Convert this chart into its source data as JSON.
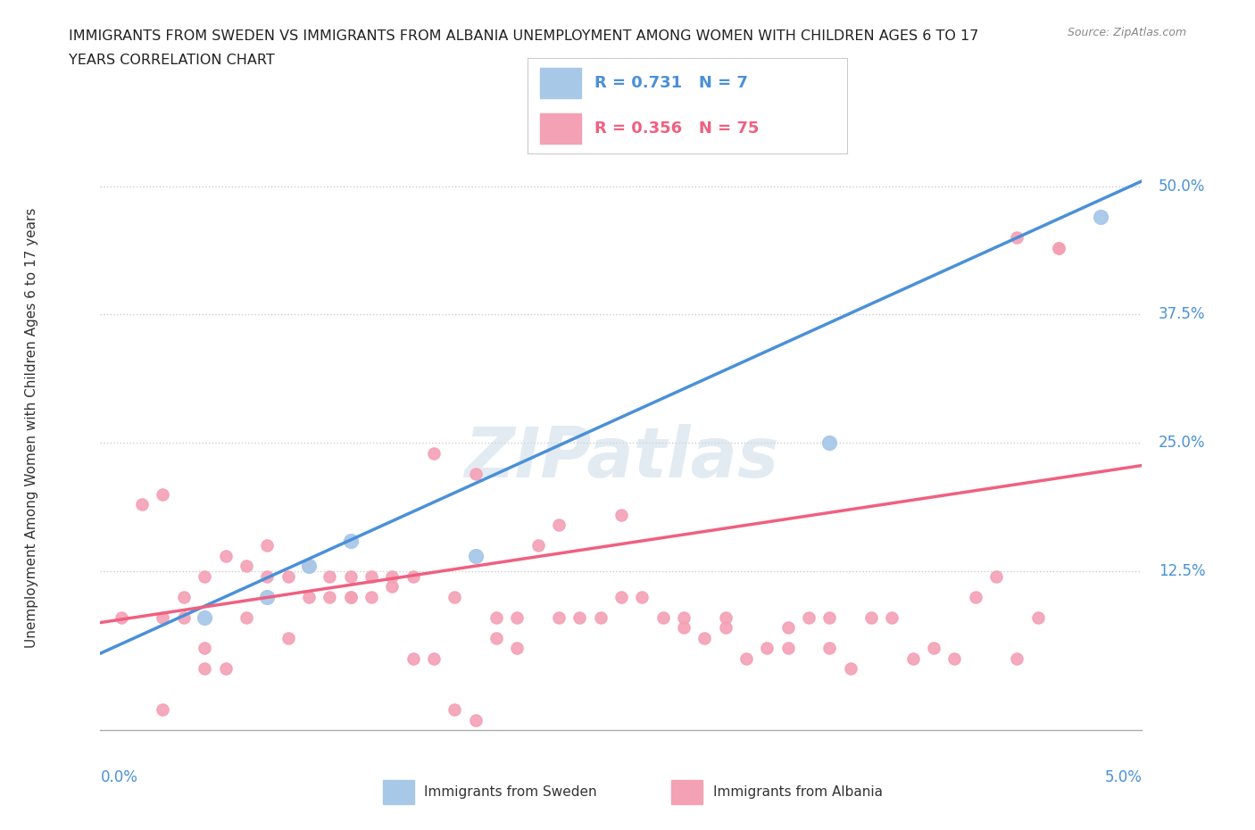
{
  "title_line1": "IMMIGRANTS FROM SWEDEN VS IMMIGRANTS FROM ALBANIA UNEMPLOYMENT AMONG WOMEN WITH CHILDREN AGES 6 TO 17",
  "title_line2": "YEARS CORRELATION CHART",
  "source": "Source: ZipAtlas.com",
  "xlabel_bottom_left": "0.0%",
  "xlabel_bottom_right": "5.0%",
  "ylabel": "Unemployment Among Women with Children Ages 6 to 17 years",
  "y_tick_labels": [
    "12.5%",
    "25.0%",
    "37.5%",
    "50.0%"
  ],
  "y_tick_values": [
    0.125,
    0.25,
    0.375,
    0.5
  ],
  "xlim": [
    0.0,
    0.05
  ],
  "ylim": [
    -0.03,
    0.56
  ],
  "sweden_color": "#a8c8e8",
  "albania_color": "#f4a0b5",
  "sweden_line_color": "#4a90d9",
  "albania_line_color": "#f06080",
  "sweden_R": 0.731,
  "sweden_N": 7,
  "albania_R": 0.356,
  "albania_N": 75,
  "background_color": "#ffffff",
  "watermark": "ZIPatlas",
  "sweden_points_x": [
    0.005,
    0.008,
    0.01,
    0.012,
    0.018,
    0.035,
    0.048
  ],
  "sweden_points_y": [
    0.08,
    0.1,
    0.13,
    0.155,
    0.14,
    0.25,
    0.47
  ],
  "albania_points_x": [
    0.001,
    0.002,
    0.003,
    0.003,
    0.004,
    0.005,
    0.005,
    0.006,
    0.006,
    0.007,
    0.007,
    0.008,
    0.008,
    0.009,
    0.009,
    0.01,
    0.01,
    0.011,
    0.011,
    0.012,
    0.012,
    0.012,
    0.013,
    0.013,
    0.014,
    0.014,
    0.015,
    0.015,
    0.016,
    0.016,
    0.017,
    0.018,
    0.018,
    0.019,
    0.019,
    0.02,
    0.02,
    0.021,
    0.022,
    0.022,
    0.023,
    0.024,
    0.025,
    0.025,
    0.026,
    0.027,
    0.028,
    0.028,
    0.029,
    0.03,
    0.03,
    0.031,
    0.032,
    0.033,
    0.033,
    0.034,
    0.035,
    0.035,
    0.036,
    0.037,
    0.038,
    0.039,
    0.04,
    0.041,
    0.042,
    0.043,
    0.044,
    0.045,
    0.046,
    0.003,
    0.004,
    0.005,
    0.017,
    0.044,
    0.046
  ],
  "albania_points_y": [
    0.08,
    0.19,
    0.2,
    -0.01,
    0.1,
    0.12,
    0.05,
    0.14,
    0.03,
    0.13,
    0.08,
    0.15,
    0.12,
    0.06,
    0.12,
    0.1,
    0.13,
    0.12,
    0.1,
    0.1,
    0.1,
    0.12,
    0.12,
    0.1,
    0.12,
    0.11,
    0.12,
    0.04,
    0.24,
    0.04,
    0.1,
    0.22,
    -0.02,
    0.08,
    0.06,
    0.08,
    0.05,
    0.15,
    0.08,
    0.17,
    0.08,
    0.08,
    0.18,
    0.1,
    0.1,
    0.08,
    0.07,
    0.08,
    0.06,
    0.08,
    0.07,
    0.04,
    0.05,
    0.05,
    0.07,
    0.08,
    0.05,
    0.08,
    0.03,
    0.08,
    0.08,
    0.04,
    0.05,
    0.04,
    0.1,
    0.12,
    0.45,
    0.08,
    0.44,
    0.08,
    0.08,
    0.03,
    -0.01,
    0.04,
    0.44
  ],
  "sweden_line_x0": 0.0,
  "sweden_line_y0": 0.045,
  "sweden_line_x1": 0.05,
  "sweden_line_y1": 0.505,
  "albania_line_x0": 0.0,
  "albania_line_y0": 0.075,
  "albania_line_x1": 0.05,
  "albania_line_y1": 0.228
}
